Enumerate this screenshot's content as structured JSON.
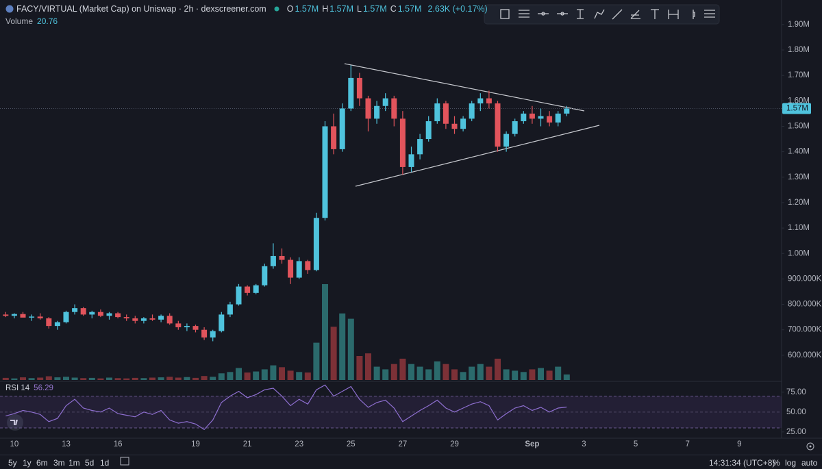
{
  "header": {
    "title": "FACY/VIRTUAL (Market Cap) on Uniswap · 2h · dexscreener.com",
    "ohlc": [
      {
        "key": "O",
        "value": "1.57M"
      },
      {
        "key": "H",
        "value": "1.57M"
      },
      {
        "key": "L",
        "value": "1.57M"
      },
      {
        "key": "C",
        "value": "1.57M"
      }
    ],
    "change": "2.63K (+0.17%)"
  },
  "chart_data": {
    "type": "candlestick",
    "categories": [
      null,
      "10",
      null,
      null,
      null,
      null,
      null,
      "13",
      null,
      null,
      null,
      null,
      null,
      "16",
      null,
      null,
      null,
      null,
      null,
      null,
      null,
      null,
      "19",
      null,
      null,
      null,
      null,
      null,
      "21",
      null,
      null,
      null,
      null,
      null,
      "23",
      null,
      null,
      null,
      null,
      null,
      "25",
      null,
      null,
      null,
      null,
      null,
      "27",
      null,
      null,
      null,
      null,
      null,
      "29",
      null,
      null,
      null,
      null,
      null,
      null,
      null,
      null,
      "Sep",
      null,
      null,
      null,
      null,
      null,
      "3",
      null,
      null,
      null,
      null,
      null,
      "5",
      null,
      null,
      null,
      null,
      null,
      "7",
      null,
      null,
      null,
      null,
      null,
      "9",
      null,
      null,
      null,
      null
    ],
    "open": [
      760000,
      755000,
      762000,
      748000,
      752000,
      745000,
      715000,
      730000,
      770000,
      785000,
      760000,
      770000,
      755000,
      765000,
      750000,
      745000,
      735000,
      745000,
      740000,
      755000,
      725000,
      710000,
      715000,
      700000,
      670000,
      695000,
      760000,
      800000,
      870000,
      845000,
      875000,
      950000,
      990000,
      975000,
      905000,
      970000,
      935000,
      1140000,
      1500000,
      1410000,
      1570000,
      1690000,
      1610000,
      1530000,
      1580000,
      1610000,
      1530000,
      1340000,
      1390000,
      1450000,
      1520000,
      1590000,
      1510000,
      1490000,
      1530000,
      1590000,
      1610000,
      1590000,
      1420000,
      1470000,
      1520000,
      1550000,
      1530000,
      1540000,
      1515000,
      1550000,
      null,
      null,
      null,
      null,
      null,
      null,
      null,
      null,
      null,
      null,
      null,
      null,
      null,
      null,
      null,
      null,
      null,
      null,
      null,
      null,
      null,
      null,
      null,
      null
    ],
    "high": [
      770000,
      765000,
      770000,
      760000,
      765000,
      750000,
      735000,
      775000,
      800000,
      790000,
      775000,
      780000,
      770000,
      770000,
      760000,
      755000,
      750000,
      760000,
      760000,
      765000,
      735000,
      725000,
      720000,
      710000,
      700000,
      770000,
      810000,
      880000,
      875000,
      880000,
      960000,
      1040000,
      1020000,
      985000,
      985000,
      975000,
      1160000,
      1520000,
      1550000,
      1590000,
      1740000,
      1710000,
      1620000,
      1600000,
      1630000,
      1620000,
      1560000,
      1420000,
      1470000,
      1540000,
      1610000,
      1600000,
      1540000,
      1540000,
      1600000,
      1630000,
      1640000,
      1600000,
      1480000,
      1530000,
      1560000,
      1580000,
      1570000,
      1560000,
      1560000,
      1580000,
      null,
      null,
      null,
      null,
      null,
      null,
      null,
      null,
      null,
      null,
      null,
      null,
      null,
      null,
      null,
      null,
      null,
      null,
      null,
      null,
      null,
      null,
      null,
      null
    ],
    "low": [
      750000,
      745000,
      750000,
      735000,
      740000,
      705000,
      700000,
      725000,
      760000,
      755000,
      745000,
      750000,
      740000,
      745000,
      735000,
      725000,
      725000,
      735000,
      730000,
      720000,
      700000,
      695000,
      690000,
      660000,
      655000,
      690000,
      750000,
      795000,
      835000,
      840000,
      870000,
      940000,
      960000,
      880000,
      900000,
      920000,
      930000,
      1130000,
      1390000,
      1400000,
      1560000,
      1580000,
      1480000,
      1510000,
      1560000,
      1500000,
      1310000,
      1320000,
      1370000,
      1440000,
      1510000,
      1490000,
      1470000,
      1480000,
      1520000,
      1560000,
      1570000,
      1400000,
      1400000,
      1460000,
      1510000,
      1510000,
      1500000,
      1500000,
      1500000,
      1540000,
      null,
      null,
      null,
      null,
      null,
      null,
      null,
      null,
      null,
      null,
      null,
      null,
      null,
      null,
      null,
      null,
      null,
      null,
      null,
      null,
      null,
      null,
      null,
      null
    ],
    "close": [
      755000,
      762000,
      748000,
      752000,
      745000,
      715000,
      730000,
      770000,
      785000,
      760000,
      770000,
      755000,
      765000,
      750000,
      745000,
      735000,
      745000,
      740000,
      755000,
      725000,
      710000,
      715000,
      700000,
      670000,
      695000,
      760000,
      800000,
      870000,
      845000,
      875000,
      950000,
      990000,
      975000,
      905000,
      970000,
      935000,
      1140000,
      1500000,
      1410000,
      1570000,
      1690000,
      1610000,
      1530000,
      1580000,
      1610000,
      1530000,
      1340000,
      1390000,
      1450000,
      1520000,
      1590000,
      1510000,
      1490000,
      1530000,
      1590000,
      1610000,
      1590000,
      1420000,
      1470000,
      1520000,
      1550000,
      1530000,
      1540000,
      1515000,
      1550000,
      1570000,
      null,
      null,
      null,
      null,
      null,
      null,
      null,
      null,
      null,
      null,
      null,
      null,
      null,
      null,
      null,
      null,
      null,
      null,
      null,
      null,
      null,
      null,
      null,
      null
    ],
    "up_color": "#4fc3dd",
    "down_color": "#e2545c",
    "ylim": [
      500000,
      1975000
    ],
    "yticks": [
      {
        "value": 600000,
        "label": "600.000K"
      },
      {
        "value": 700000,
        "label": "700.000K"
      },
      {
        "value": 800000,
        "label": "800.000K"
      },
      {
        "value": 900000,
        "label": "900.000K"
      },
      {
        "value": 1000000,
        "label": "1.00M"
      },
      {
        "value": 1100000,
        "label": "1.10M"
      },
      {
        "value": 1200000,
        "label": "1.20M"
      },
      {
        "value": 1300000,
        "label": "1.30M"
      },
      {
        "value": 1400000,
        "label": "1.40M"
      },
      {
        "value": 1500000,
        "label": "1.50M"
      },
      {
        "value": 1600000,
        "label": "1.60M"
      },
      {
        "value": 1700000,
        "label": "1.70M"
      },
      {
        "value": 1800000,
        "label": "1.80M"
      },
      {
        "value": 1900000,
        "label": "1.90M"
      }
    ],
    "grid": false,
    "last_price": {
      "value": 1570000,
      "label": "1.57M"
    },
    "volume": {
      "name": "Volume",
      "up_color": "#2b6a6c",
      "down_color": "#7c3137",
      "values": [
        8,
        6,
        10,
        7,
        9,
        14,
        10,
        12,
        9,
        7,
        8,
        6,
        9,
        7,
        6,
        8,
        7,
        9,
        10,
        12,
        9,
        11,
        8,
        15,
        12,
        25,
        30,
        45,
        28,
        32,
        40,
        55,
        48,
        35,
        30,
        28,
        140,
        360,
        200,
        250,
        230,
        90,
        100,
        50,
        40,
        60,
        80,
        60,
        50,
        40,
        70,
        60,
        40,
        30,
        50,
        60,
        50,
        80,
        40,
        35,
        30,
        40,
        45,
        35,
        50,
        20.76,
        null,
        null,
        null,
        null,
        null,
        null,
        null,
        null,
        null,
        null,
        null,
        null,
        null,
        null,
        null,
        null,
        null,
        null,
        null,
        null,
        null,
        null,
        null,
        null
      ]
    },
    "rsi": {
      "name": "RSI 14",
      "color": "#8e6fd0",
      "ylim": [
        18,
        86
      ],
      "bands": [
        30,
        70
      ],
      "yticks": [
        {
          "value": 25,
          "label": "25.00"
        },
        {
          "value": 50,
          "label": "50.00"
        },
        {
          "value": 75,
          "label": "75.00"
        }
      ],
      "values": [
        45,
        48,
        52,
        50,
        47,
        38,
        42,
        58,
        66,
        55,
        52,
        50,
        55,
        48,
        46,
        44,
        50,
        47,
        52,
        40,
        36,
        38,
        35,
        28,
        40,
        62,
        70,
        76,
        68,
        72,
        78,
        80,
        70,
        58,
        66,
        60,
        78,
        84,
        70,
        76,
        82,
        66,
        56,
        62,
        65,
        55,
        38,
        45,
        52,
        58,
        65,
        55,
        50,
        55,
        60,
        63,
        58,
        40,
        48,
        55,
        58,
        52,
        56,
        50,
        55,
        56.29,
        null,
        null,
        null,
        null,
        null,
        null,
        null,
        null,
        null,
        null,
        null,
        null,
        null,
        null,
        null,
        null,
        null,
        null,
        null,
        null,
        null,
        null,
        null,
        null
      ]
    }
  },
  "toolbar": {
    "ranges": [
      "5y",
      "1y",
      "6m",
      "3m",
      "1m",
      "5d",
      "1d"
    ],
    "time": "14:31:34 (UTC+8)",
    "options": [
      "%",
      "log",
      "auto"
    ]
  }
}
